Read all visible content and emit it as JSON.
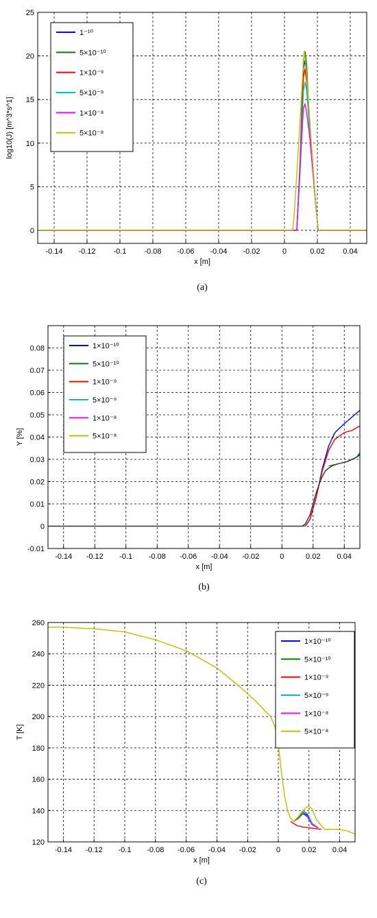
{
  "chart_data": [
    {
      "type": "line",
      "caption": "(a)",
      "xlabel": "x [m]",
      "ylabel": "log10(J) [m^3*s^1]",
      "xlim": [
        -0.15,
        0.05
      ],
      "ylim": [
        -1.5,
        25
      ],
      "xticks": [
        "-0.14",
        "-0.12",
        "-0.1",
        "-0.08",
        "-0.06",
        "-0.04",
        "-0.02",
        "0",
        "0.02",
        "0.04"
      ],
      "yticks": [
        "0",
        "5",
        "10",
        "15",
        "20",
        "25"
      ],
      "grid": true,
      "legend_position": "top-left",
      "series": [
        {
          "name": "1⁻¹⁰",
          "color": "#0000ff",
          "x": [
            -0.15,
            0.0075,
            0.0095,
            0.0115,
            0.0125,
            0.0135,
            0.0155,
            0.019,
            0.0205,
            0.05
          ],
          "y": [
            0,
            0,
            7.5,
            18.5,
            19.5,
            18,
            11,
            3,
            0,
            0
          ]
        },
        {
          "name": "5×10⁻¹⁰",
          "color": "#008000",
          "x": [
            -0.15,
            0.0075,
            0.0095,
            0.0115,
            0.0125,
            0.0135,
            0.0155,
            0.019,
            0.0205,
            0.05
          ],
          "y": [
            0,
            0,
            8,
            19.5,
            20.5,
            19,
            11,
            3,
            0,
            0
          ]
        },
        {
          "name": "1×10⁻⁹",
          "color": "#ff0000",
          "x": [
            -0.15,
            0.0075,
            0.0095,
            0.0115,
            0.0125,
            0.0135,
            0.0155,
            0.019,
            0.0205,
            0.05
          ],
          "y": [
            0,
            0,
            7,
            17.5,
            18.5,
            17,
            10.5,
            3,
            0,
            0
          ]
        },
        {
          "name": "5×10⁻⁹",
          "color": "#00bfbf",
          "x": [
            -0.15,
            0.0075,
            0.0095,
            0.0115,
            0.0125,
            0.0135,
            0.0155,
            0.019,
            0.0205,
            0.05
          ],
          "y": [
            0,
            0,
            7,
            16,
            17,
            16,
            11,
            3,
            0,
            0
          ]
        },
        {
          "name": "1×10⁻⁸",
          "color": "#ff00ff",
          "x": [
            -0.15,
            0.0075,
            0.0095,
            0.0115,
            0.0125,
            0.0135,
            0.0155,
            0.019,
            0.0205,
            0.05
          ],
          "y": [
            0,
            0,
            7,
            14,
            14.5,
            13.5,
            10.5,
            3,
            0,
            0
          ]
        },
        {
          "name": "5×10⁻⁸",
          "color": "#bfbf00",
          "x": [
            -0.15,
            0.005,
            0.006,
            0.009,
            0.011,
            0.012,
            0.013,
            0.016,
            0.019,
            0.0205,
            0.05
          ],
          "y": [
            0,
            0,
            2,
            11,
            17.5,
            20.5,
            19,
            11,
            3,
            0,
            0
          ]
        }
      ]
    },
    {
      "type": "line",
      "caption": "(b)",
      "xlabel": "x [m]",
      "ylabel": "Y [%]",
      "xlim": [
        -0.15,
        0.05
      ],
      "ylim": [
        -0.01,
        0.09
      ],
      "xticks": [
        "-0.14",
        "-0.12",
        "-0.1",
        "-0.08",
        "-0.06",
        "-0.04",
        "-0.02",
        "0",
        "0.02",
        "0.04"
      ],
      "yticks": [
        "-0.01",
        "0",
        "0.01",
        "0.02",
        "0.03",
        "0.04",
        "0.05",
        "0.06",
        "0.07",
        "0.08"
      ],
      "grid": true,
      "legend_position": "top-left",
      "series": [
        {
          "name": "1×10⁻¹⁰",
          "color": "#0000ff",
          "x": [
            0.015,
            0.018,
            0.022,
            0.026,
            0.03,
            0.034,
            0.04,
            0.045,
            0.05
          ],
          "y": [
            0,
            0.003,
            0.013,
            0.026,
            0.036,
            0.042,
            0.046,
            0.049,
            0.052
          ]
        },
        {
          "name": "5×10⁻¹⁰",
          "color": "#008000",
          "x": [
            0.03,
            0.036,
            0.042,
            0.048,
            0.05
          ],
          "y": [
            0.027,
            0.028,
            0.029,
            0.031,
            0.033
          ]
        },
        {
          "name": "1×10⁻⁹",
          "color": "#ff0000",
          "x": [
            0.015,
            0.018,
            0.022,
            0.026,
            0.03,
            0.034,
            0.04,
            0.045,
            0.05
          ],
          "y": [
            0,
            0.003,
            0.013,
            0.025,
            0.034,
            0.039,
            0.042,
            0.043,
            0.045
          ]
        },
        {
          "name": "5×10⁻⁹",
          "color": "#00bfbf",
          "x": [],
          "y": []
        },
        {
          "name": "1×10⁻⁸",
          "color": "#ff00ff",
          "x": [],
          "y": []
        },
        {
          "name": "5×10⁻⁸",
          "color": "#bfbf00",
          "x": [],
          "y": []
        },
        {
          "color": "#333333",
          "x": [
            -0.15,
            0.013,
            0.015,
            0.018,
            0.022,
            0.025,
            0.028,
            0.032,
            0.036,
            0.042,
            0.048,
            0.05
          ],
          "y": [
            0,
            0,
            0.001,
            0.005,
            0.015,
            0.021,
            0.025,
            0.027,
            0.028,
            0.029,
            0.031,
            0.032
          ]
        }
      ]
    },
    {
      "type": "line",
      "caption": "(c)",
      "xlabel": "x [m]",
      "ylabel": "T [K]",
      "xlim": [
        -0.15,
        0.05
      ],
      "ylim": [
        120,
        260
      ],
      "xticks": [
        "-0.14",
        "-0.12",
        "-0.1",
        "-0.08",
        "-0.06",
        "-0.04",
        "-0.02",
        "0",
        "0.02",
        "0.04"
      ],
      "yticks": [
        "120",
        "140",
        "160",
        "180",
        "200",
        "220",
        "240",
        "260"
      ],
      "grid": true,
      "legend_position": "top-right",
      "series": [
        {
          "name": "1×10⁻¹⁰",
          "color": "#0000ff",
          "x": [
            0.01,
            0.013,
            0.016,
            0.019,
            0.022,
            0.026
          ],
          "y": [
            133,
            135,
            139,
            137,
            131,
            129
          ]
        },
        {
          "name": "5×10⁻¹⁰",
          "color": "#008000",
          "x": [
            0.01,
            0.013,
            0.016,
            0.019,
            0.022,
            0.026
          ],
          "y": [
            133,
            135,
            138,
            136,
            131,
            129
          ]
        },
        {
          "name": "1×10⁻⁹",
          "color": "#ff0000",
          "x": [
            0.008,
            0.012,
            0.016,
            0.02,
            0.024,
            0.028
          ],
          "y": [
            133,
            130.5,
            129.5,
            129,
            128.5,
            128
          ]
        },
        {
          "name": "5×10⁻⁹",
          "color": "#00bfbf",
          "x": [
            0.01,
            0.013,
            0.016,
            0.019,
            0.022,
            0.026
          ],
          "y": [
            133,
            136,
            140,
            138,
            132,
            129
          ]
        },
        {
          "name": "1×10⁻⁸",
          "color": "#ff00ff",
          "x": [
            0.01,
            0.013,
            0.016,
            0.019,
            0.022,
            0.026
          ],
          "y": [
            133,
            136,
            139,
            136,
            131,
            129
          ]
        },
        {
          "name": "5×10⁻⁸",
          "color": "#bfbf00",
          "x": [
            -0.15,
            -0.14,
            -0.12,
            -0.1,
            -0.08,
            -0.06,
            -0.04,
            -0.025,
            -0.015,
            -0.005,
            -0.002,
            0.0,
            0.002,
            0.004,
            0.006,
            0.008,
            0.01,
            0.014,
            0.018,
            0.02,
            0.022,
            0.025,
            0.03,
            0.04,
            0.045,
            0.05
          ],
          "y": [
            257,
            257,
            256,
            254,
            249,
            242,
            231,
            219,
            210,
            200,
            193,
            182,
            165,
            150,
            140,
            135,
            133,
            137,
            142,
            143,
            141,
            134,
            128,
            128,
            127,
            125
          ]
        }
      ]
    }
  ]
}
